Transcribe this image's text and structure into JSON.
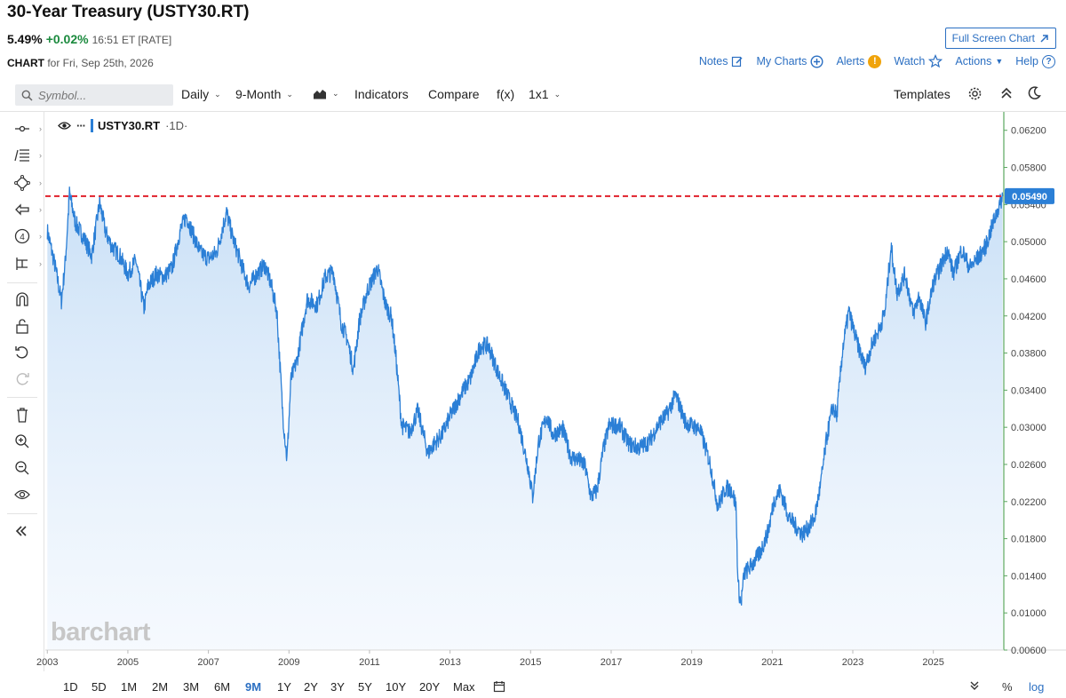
{
  "header": {
    "title": "30-Year Treasury (USTY30.RT)",
    "last": "5.49%",
    "change": "+0.02%",
    "time": "16:51 ET [RATE]",
    "chart_word": "CHART",
    "chart_date": "for Fri, Sep 25th, 2026",
    "fullscreen_label": "Full Screen Chart",
    "nav": {
      "notes": "Notes",
      "mycharts": "My Charts",
      "alerts": "Alerts",
      "alert_badge": "!",
      "watch": "Watch",
      "actions": "Actions",
      "help": "Help",
      "help_badge": "?"
    }
  },
  "toolbar": {
    "symbol_placeholder": "Symbol...",
    "daily": "Daily",
    "period": "9-Month",
    "indicators": "Indicators",
    "compare": "Compare",
    "fx": "f(x)",
    "layout": "1x1",
    "templates": "Templates"
  },
  "legend": {
    "symbol": "USTY30.RT",
    "interval": "·1D·"
  },
  "watermark": "barchart",
  "bottom": {
    "ranges": [
      "1D",
      "5D",
      "1M",
      "2M",
      "3M",
      "6M",
      "9M",
      "1Y",
      "2Y",
      "3Y",
      "5Y",
      "10Y",
      "20Y",
      "Max"
    ],
    "active_range": "9M",
    "percent": "%",
    "log": "log"
  },
  "colors": {
    "line": "#2b7fd6",
    "fill_top": "#c9e1f7",
    "last_line": "#e0202b",
    "label_bg": "#2b7fd6",
    "accent": "#2b6fc2"
  },
  "chart_data": {
    "type": "area",
    "title": "30-Year Treasury (USTY30.RT)",
    "xlabel": "",
    "ylabel": "",
    "xlim": [
      2002.95,
      2026.75
    ],
    "ylim": [
      0.006,
      0.0636
    ],
    "y_ticks": [
      "0.06200",
      "0.05800",
      "0.05400",
      "0.05000",
      "0.04600",
      "0.04200",
      "0.03800",
      "0.03400",
      "0.03000",
      "0.02600",
      "0.02200",
      "0.01800",
      "0.01400",
      "0.01000",
      "0.00600"
    ],
    "y_tick_values": [
      0.062,
      0.058,
      0.054,
      0.05,
      0.046,
      0.042,
      0.038,
      0.034,
      0.03,
      0.026,
      0.022,
      0.018,
      0.014,
      0.01,
      0.006
    ],
    "x_ticks": [
      "2003",
      "2005",
      "2007",
      "2009",
      "2011",
      "2013",
      "2015",
      "2017",
      "2019",
      "2021",
      "2023",
      "2025"
    ],
    "x_tick_values": [
      2003,
      2005,
      2007,
      2009,
      2011,
      2013,
      2015,
      2017,
      2019,
      2021,
      2023,
      2025
    ],
    "last_value": 0.0549,
    "last_label": "0.05490",
    "series": [
      {
        "x": [
          2003.0,
          2003.2,
          2003.35,
          2003.45,
          2003.55,
          2003.7,
          2003.9,
          2004.1,
          2004.3,
          2004.45,
          2004.6,
          2004.8,
          2005.0,
          2005.2,
          2005.4,
          2005.5,
          2005.7,
          2005.9,
          2006.1,
          2006.3,
          2006.45,
          2006.6,
          2006.8,
          2007.0,
          2007.2,
          2007.45,
          2007.6,
          2007.8,
          2008.0,
          2008.2,
          2008.4,
          2008.55,
          2008.7,
          2008.85,
          2008.95,
          2009.05,
          2009.2,
          2009.45,
          2009.7,
          2009.9,
          2010.1,
          2010.3,
          2010.45,
          2010.6,
          2010.75,
          2010.95,
          2011.1,
          2011.2,
          2011.4,
          2011.55,
          2011.65,
          2011.8,
          2012.0,
          2012.2,
          2012.45,
          2012.6,
          2012.8,
          2013.0,
          2013.3,
          2013.5,
          2013.75,
          2013.95,
          2014.2,
          2014.45,
          2014.7,
          2014.95,
          2015.05,
          2015.2,
          2015.4,
          2015.55,
          2015.8,
          2016.0,
          2016.2,
          2016.35,
          2016.5,
          2016.65,
          2016.8,
          2016.95,
          2017.2,
          2017.45,
          2017.7,
          2017.95,
          2018.2,
          2018.4,
          2018.6,
          2018.85,
          2019.0,
          2019.2,
          2019.45,
          2019.65,
          2019.85,
          2020.0,
          2020.1,
          2020.15,
          2020.22,
          2020.3,
          2020.5,
          2020.7,
          2020.9,
          2021.05,
          2021.2,
          2021.4,
          2021.55,
          2021.75,
          2021.9,
          2022.05,
          2022.2,
          2022.35,
          2022.5,
          2022.6,
          2022.75,
          2022.9,
          2023.1,
          2023.3,
          2023.5,
          2023.65,
          2023.8,
          2023.95,
          2024.1,
          2024.3,
          2024.5,
          2024.65,
          2024.8,
          2025.0,
          2025.2,
          2025.35,
          2025.5,
          2025.7,
          2025.9,
          2026.1,
          2026.3,
          2026.5,
          2026.72
        ],
        "y": [
          0.0512,
          0.0472,
          0.0436,
          0.048,
          0.0552,
          0.052,
          0.0505,
          0.0485,
          0.0542,
          0.051,
          0.0495,
          0.0485,
          0.0465,
          0.048,
          0.0428,
          0.0452,
          0.0465,
          0.0462,
          0.0472,
          0.0512,
          0.0528,
          0.051,
          0.0488,
          0.0482,
          0.0488,
          0.0532,
          0.0505,
          0.0478,
          0.0452,
          0.0465,
          0.0475,
          0.0455,
          0.0425,
          0.0312,
          0.0265,
          0.0352,
          0.0372,
          0.0438,
          0.0432,
          0.0462,
          0.0468,
          0.0412,
          0.0395,
          0.0362,
          0.0415,
          0.0448,
          0.0462,
          0.0472,
          0.0432,
          0.0418,
          0.0378,
          0.0302,
          0.0295,
          0.0318,
          0.0272,
          0.0282,
          0.0292,
          0.0312,
          0.0338,
          0.0352,
          0.0388,
          0.0388,
          0.0358,
          0.0332,
          0.0305,
          0.0255,
          0.0225,
          0.0285,
          0.0312,
          0.0292,
          0.0298,
          0.0268,
          0.0265,
          0.0258,
          0.0225,
          0.0232,
          0.0275,
          0.0302,
          0.0302,
          0.0282,
          0.0278,
          0.0285,
          0.0305,
          0.0315,
          0.0335,
          0.0305,
          0.0302,
          0.0298,
          0.0262,
          0.0215,
          0.0235,
          0.0232,
          0.0215,
          0.0132,
          0.0108,
          0.0142,
          0.0152,
          0.0165,
          0.0188,
          0.0222,
          0.0232,
          0.0205,
          0.0195,
          0.0185,
          0.0192,
          0.0202,
          0.0238,
          0.0288,
          0.0322,
          0.0312,
          0.0385,
          0.0425,
          0.0392,
          0.0365,
          0.0392,
          0.0405,
          0.0425,
          0.0495,
          0.0445,
          0.0465,
          0.0422,
          0.0442,
          0.0412,
          0.0455,
          0.0475,
          0.0492,
          0.0465,
          0.0492,
          0.0472,
          0.0482,
          0.0495,
          0.0522,
          0.0549
        ]
      }
    ]
  }
}
